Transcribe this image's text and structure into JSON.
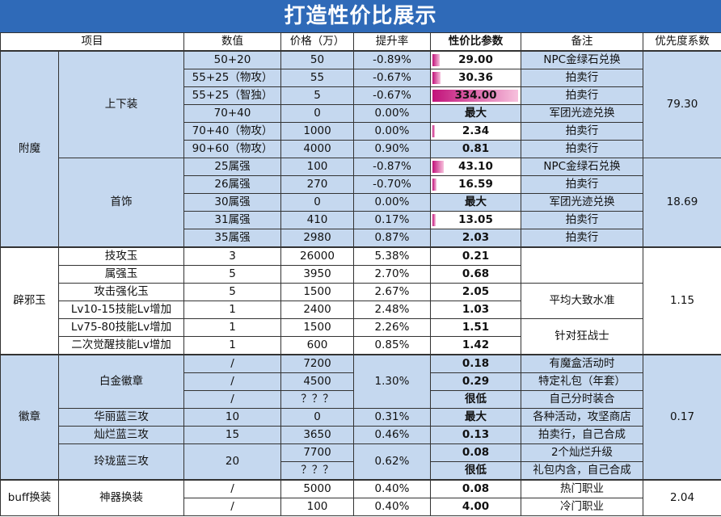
{
  "title": "打造性价比展示",
  "headers": [
    "项目",
    "数值",
    "价格（万）",
    "提升率",
    "性价比参数",
    "备注",
    "优先度系数"
  ],
  "colors": {
    "title_bg": "#2f6ab8",
    "group_bg": "#c5d8ef",
    "bar_start": "#c2127a",
    "bar_end": "#f7c1dd"
  },
  "bar_max": 334,
  "groups": [
    {
      "name": "附魔",
      "style": "blue",
      "subgroups": [
        {
          "name": "上下装",
          "priority": "79.30",
          "rows": [
            {
              "value": "50+20",
              "price": "50",
              "rate": "-0.89%",
              "pv": "29.00",
              "pv_num": 29.0,
              "note": "NPC金绿石兑换"
            },
            {
              "value": "55+25（物攻）",
              "price": "55",
              "rate": "-0.67%",
              "pv": "30.36",
              "pv_num": 30.36,
              "note": "拍卖行"
            },
            {
              "value": "55+25（智独）",
              "price": "5",
              "rate": "-0.67%",
              "pv": "334.00",
              "pv_num": 334.0,
              "note": "拍卖行"
            },
            {
              "value": "70+40",
              "price": "0",
              "rate": "0.00%",
              "pv": "最大",
              "note": "军团光迹兑换"
            },
            {
              "value": "70+40（物攻）",
              "price": "1000",
              "rate": "0.00%",
              "pv": "2.34",
              "pv_num": 2.34,
              "note": "拍卖行"
            },
            {
              "value": "90+60（物攻）",
              "price": "4000",
              "rate": "0.90%",
              "pv": "0.81",
              "note": "拍卖行"
            }
          ]
        },
        {
          "name": "首饰",
          "priority": "18.69",
          "rows": [
            {
              "value": "25属强",
              "price": "100",
              "rate": "-0.87%",
              "pv": "43.10",
              "pv_num": 43.1,
              "note": "NPC金绿石兑换"
            },
            {
              "value": "26属强",
              "price": "270",
              "rate": "-0.70%",
              "pv": "16.59",
              "pv_num": 16.59,
              "note": "拍卖行"
            },
            {
              "value": "30属强",
              "price": "0",
              "rate": "0.00%",
              "pv": "最大",
              "note": "军团光迹兑换"
            },
            {
              "value": "31属强",
              "price": "410",
              "rate": "0.17%",
              "pv": "13.05",
              "pv_num": 13.05,
              "note": "拍卖行"
            },
            {
              "value": "35属强",
              "price": "2980",
              "rate": "0.87%",
              "pv": "2.03",
              "note": "拍卖行"
            }
          ]
        }
      ]
    },
    {
      "name": "辟邪玉",
      "style": "white",
      "priority": "1.15",
      "rows": [
        {
          "item": "技攻玉",
          "value": "3",
          "price": "26000",
          "rate": "5.38%",
          "pv": "0.21"
        },
        {
          "item": "属强玉",
          "value": "5",
          "price": "3950",
          "rate": "2.70%",
          "pv": "0.68"
        },
        {
          "item": "攻击强化玉",
          "value": "5",
          "price": "1500",
          "rate": "2.67%",
          "pv": "2.05"
        },
        {
          "item": "Lv10-15技能Lv增加",
          "value": "1",
          "price": "2400",
          "rate": "2.48%",
          "pv": "1.03"
        },
        {
          "item": "Lv75-80技能Lv增加",
          "value": "1",
          "price": "1500",
          "rate": "2.26%",
          "pv": "1.51"
        },
        {
          "item": "二次觉醒技能Lv增加",
          "value": "1",
          "price": "600",
          "rate": "0.85%",
          "pv": "1.42"
        }
      ],
      "notes": [
        {
          "text": "",
          "rows": 2
        },
        {
          "text": "平均大致水准",
          "rows": 2
        },
        {
          "text": "针对狂战士",
          "rows": 2
        }
      ]
    },
    {
      "name": "徽章",
      "style": "blue",
      "priority": "0.17",
      "items": [
        {
          "item": "白金徽章",
          "rate": "1.30%",
          "rows": [
            {
              "value": "/",
              "price": "7200",
              "pv": "0.18",
              "note": "有魔盒活动时"
            },
            {
              "value": "/",
              "price": "4500",
              "pv": "0.29",
              "note": "特定礼包（年套）"
            },
            {
              "value": "/",
              "price": "？？？",
              "pv": "很低",
              "note": "自己分时装合"
            }
          ]
        },
        {
          "item": "华丽蓝三攻",
          "value": "10",
          "rate": "0.31%",
          "rows": [
            {
              "price": "0",
              "pv": "最大",
              "note": "各种活动，攻坚商店"
            }
          ]
        },
        {
          "item": "灿烂蓝三攻",
          "value": "15",
          "rate": "0.46%",
          "rows": [
            {
              "price": "3650",
              "pv": "0.13",
              "note": "拍卖行，自己合成"
            }
          ]
        },
        {
          "item": "玲珑蓝三攻",
          "value": "20",
          "rate": "0.62%",
          "rows": [
            {
              "price": "7700",
              "pv": "0.08",
              "note": "2个灿烂升级"
            },
            {
              "price": "？？？",
              "pv": "很低",
              "note": "礼包内含，自己合成"
            }
          ]
        }
      ]
    },
    {
      "name": "buff换装",
      "style": "white",
      "priority": "2.04",
      "item": "神器换装",
      "rows": [
        {
          "value": "/",
          "price": "5000",
          "rate": "0.40%",
          "pv": "0.08",
          "note": "热门职业"
        },
        {
          "value": "/",
          "price": "100",
          "rate": "0.40%",
          "pv": "4.00",
          "note": "冷门职业"
        }
      ]
    }
  ]
}
